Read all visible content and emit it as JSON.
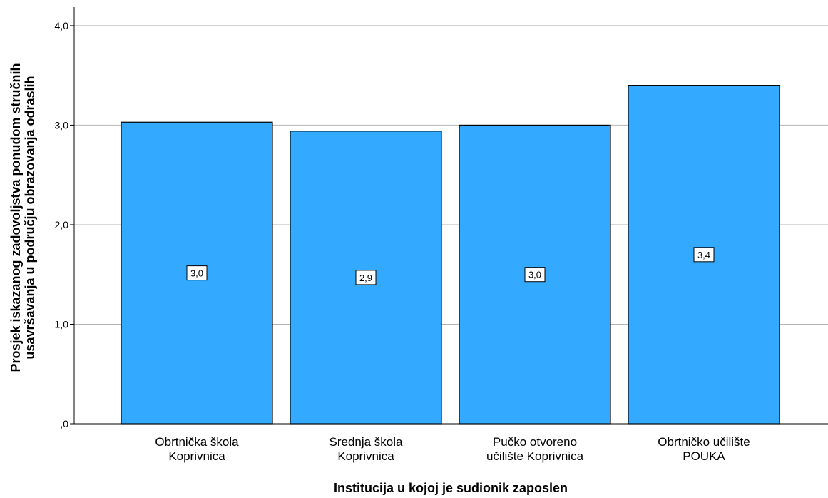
{
  "chart_data": {
    "type": "bar",
    "categories": [
      [
        "Obrtnička škola",
        "Koprivnica"
      ],
      [
        "Srednja škola",
        "Koprivnica"
      ],
      [
        "Pučko otvoreno",
        "učilište Koprivnica"
      ],
      [
        "Obrtničko učilište",
        "POUKA"
      ]
    ],
    "values": [
      3.03,
      2.94,
      3.0,
      3.4
    ],
    "data_labels": [
      "3,0",
      "2,9",
      "3,0",
      "3,4"
    ],
    "xlabel": "Institucija u kojoj je sudionik zaposlen",
    "ylabel": [
      "Prosjek iskazanog zadovoljstva ponudom stručnih",
      "usavršavanja u području obrazovanja odraslih"
    ],
    "ylim": [
      0,
      4.2
    ],
    "yticks": [
      0,
      1,
      2,
      3,
      4
    ],
    "ytick_labels": [
      ",0",
      "1,0",
      "2,0",
      "3,0",
      "4,0"
    ],
    "grid": true,
    "colors": {
      "bar": "#33aaff",
      "edge": "#000000",
      "grid": "#b4b4b4"
    }
  }
}
